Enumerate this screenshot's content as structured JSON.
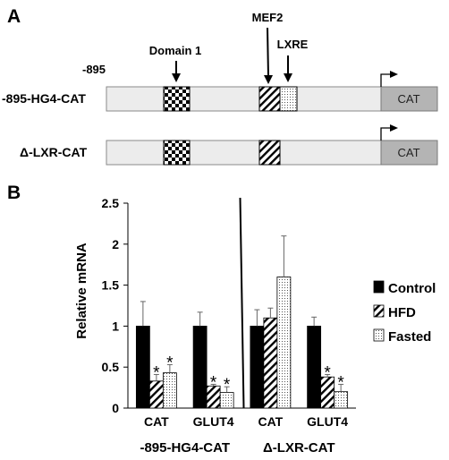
{
  "panel_a": {
    "label": "A",
    "start_label": "-895",
    "constructs": [
      {
        "name": "-895-HG4-CAT",
        "reporter": "CAT",
        "elements": [
          "domain1",
          "mef2",
          "lxre"
        ]
      },
      {
        "name": "Δ-LXR-CAT",
        "reporter": "CAT",
        "elements": [
          "domain1",
          "mef2"
        ]
      }
    ],
    "annotations": {
      "domain1": "Domain 1",
      "mef2": "MEF2",
      "lxre": "LXRE"
    }
  },
  "panel_b": {
    "label": "B"
  },
  "chart_data": {
    "type": "bar",
    "ylabel": "Relative mRNA",
    "ylim": [
      0,
      2.5
    ],
    "yticks": [
      "0",
      "0.5",
      "1",
      "1.5",
      "2",
      "2.5"
    ],
    "categories": [
      "CAT",
      "GLUT4",
      "CAT",
      "GLUT4"
    ],
    "groups": [
      "-895-HG4-CAT",
      "Δ-LXR-CAT"
    ],
    "series": [
      {
        "name": "Control",
        "values": [
          1.0,
          1.0,
          1.0,
          1.0
        ],
        "errors": [
          0.3,
          0.17,
          0.2,
          0.11
        ],
        "stars": [
          false,
          false,
          false,
          false
        ]
      },
      {
        "name": "HFD",
        "values": [
          0.33,
          0.27,
          1.1,
          0.38
        ],
        "errors": [
          0.08,
          0.02,
          0.12,
          0.03
        ],
        "stars": [
          true,
          true,
          false,
          true
        ]
      },
      {
        "name": "Fasted",
        "values": [
          0.43,
          0.19,
          1.6,
          0.2
        ],
        "errors": [
          0.1,
          0.07,
          0.5,
          0.09
        ],
        "stars": [
          true,
          true,
          false,
          true
        ]
      }
    ],
    "star_symbol": "*",
    "legend_position": "right",
    "colors": {
      "control": "#000000",
      "axis": "#000000",
      "construct_fill": "#ececec",
      "reporter_fill": "#b4b4b4"
    }
  }
}
